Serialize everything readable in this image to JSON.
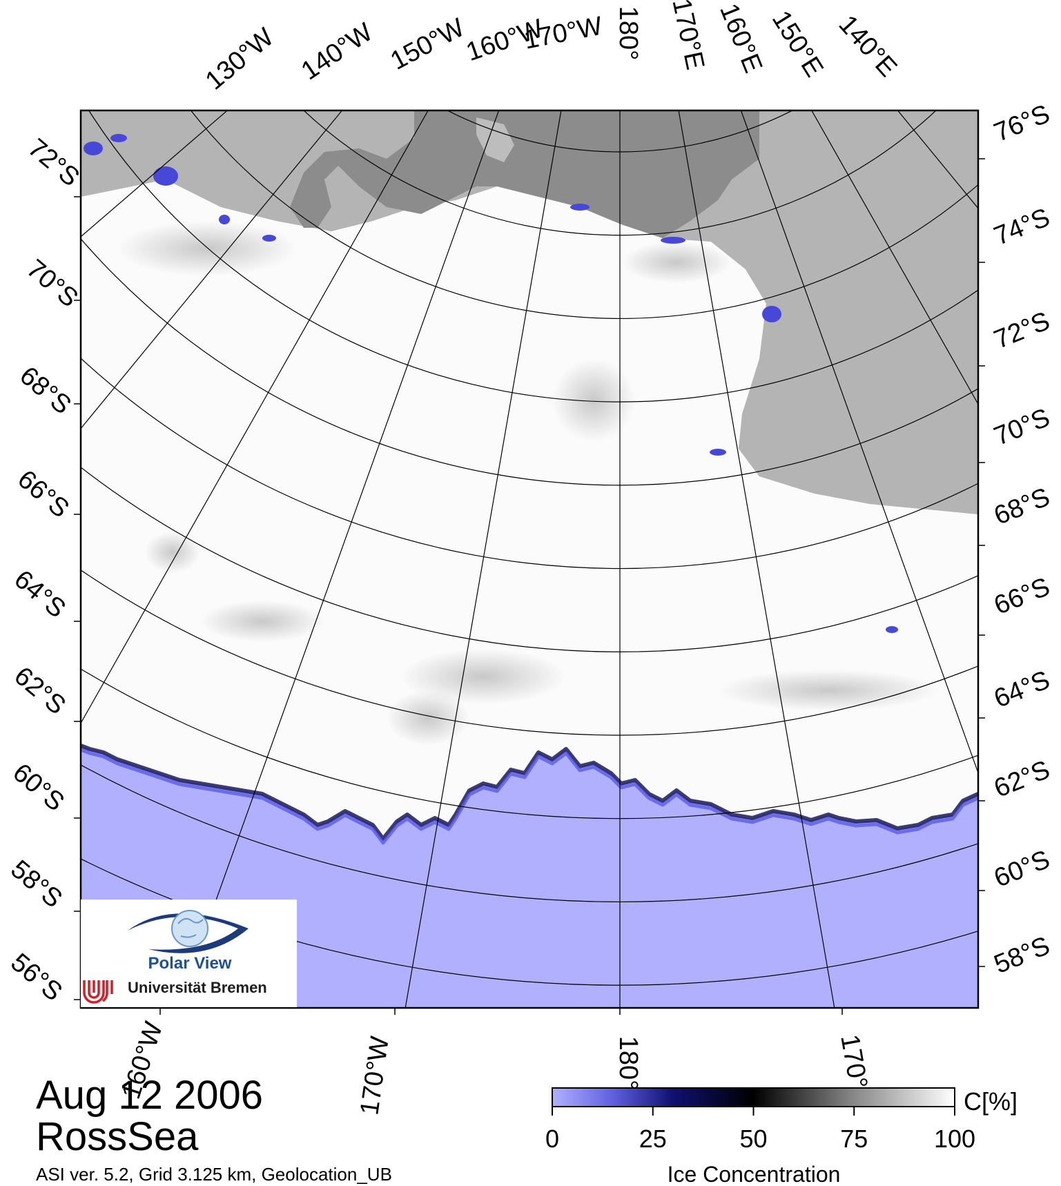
{
  "date_label": "Aug 12 2006",
  "region_label": "RossSea",
  "footer_text": "ASI ver. 5.2,  Grid 3.125 km, Geolocation_UB",
  "colorbar": {
    "unit_label": "C[%]",
    "title": "Ice Concentration",
    "ticks": [
      "0",
      "25",
      "50",
      "75",
      "100"
    ],
    "stops": [
      {
        "value": 0,
        "color": "#b0b0ff"
      },
      {
        "value": 15,
        "color": "#6060e0"
      },
      {
        "value": 30,
        "color": "#101070"
      },
      {
        "value": 50,
        "color": "#000000"
      },
      {
        "value": 75,
        "color": "#888888"
      },
      {
        "value": 100,
        "color": "#ffffff"
      }
    ]
  },
  "logo": {
    "name": "Polar View",
    "institution": "Universität Bremen"
  },
  "top_lon_labels": [
    "130°W",
    "140°W",
    "150°W",
    "160°W",
    "170°W",
    "180°",
    "170°E",
    "160°E",
    "150°E",
    "140°E"
  ],
  "bottom_lon_labels": [
    "160°W",
    "170°W",
    "180°",
    "170°"
  ],
  "left_lat_labels": [
    "72°S",
    "70°S",
    "68°S",
    "66°S",
    "64°S",
    "62°S",
    "60°S",
    "58°S",
    "56°S"
  ],
  "right_lat_labels": [
    "76°S",
    "74°S",
    "72°S",
    "70°S",
    "68°S",
    "66°S",
    "64°S",
    "62°S",
    "60°S",
    "58°S"
  ],
  "colors": {
    "ocean": "#b0b0ff",
    "land": "#b4b4b4",
    "ice_shelf": "#8c8c8c",
    "sea_ice": "#fbfbfb"
  }
}
